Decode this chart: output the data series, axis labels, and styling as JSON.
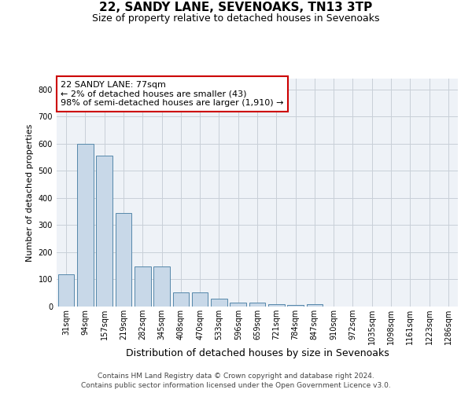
{
  "title": "22, SANDY LANE, SEVENOAKS, TN13 3TP",
  "subtitle": "Size of property relative to detached houses in Sevenoaks",
  "xlabel": "Distribution of detached houses by size in Sevenoaks",
  "ylabel": "Number of detached properties",
  "categories": [
    "31sqm",
    "94sqm",
    "157sqm",
    "219sqm",
    "282sqm",
    "345sqm",
    "408sqm",
    "470sqm",
    "533sqm",
    "596sqm",
    "659sqm",
    "721sqm",
    "784sqm",
    "847sqm",
    "910sqm",
    "972sqm",
    "1035sqm",
    "1098sqm",
    "1161sqm",
    "1223sqm",
    "1286sqm"
  ],
  "values": [
    120,
    600,
    555,
    345,
    148,
    148,
    52,
    52,
    30,
    14,
    14,
    10,
    6,
    8,
    0,
    0,
    0,
    0,
    0,
    0,
    0
  ],
  "bar_color": "#c8d8e8",
  "bar_edge_color": "#5588aa",
  "annotation_text": "22 SANDY LANE: 77sqm\n← 2% of detached houses are smaller (43)\n98% of semi-detached houses are larger (1,910) →",
  "annotation_box_color": "#ffffff",
  "annotation_box_edge": "#cc0000",
  "ylim": [
    0,
    840
  ],
  "yticks": [
    0,
    100,
    200,
    300,
    400,
    500,
    600,
    700,
    800
  ],
  "footer_line1": "Contains HM Land Registry data © Crown copyright and database right 2024.",
  "footer_line2": "Contains public sector information licensed under the Open Government Licence v3.0.",
  "bg_color": "#eef2f7",
  "grid_color": "#c8cfd8",
  "title_fontsize": 11,
  "subtitle_fontsize": 9,
  "xlabel_fontsize": 9,
  "ylabel_fontsize": 8,
  "tick_fontsize": 7,
  "annotation_fontsize": 8,
  "footer_fontsize": 6.5
}
